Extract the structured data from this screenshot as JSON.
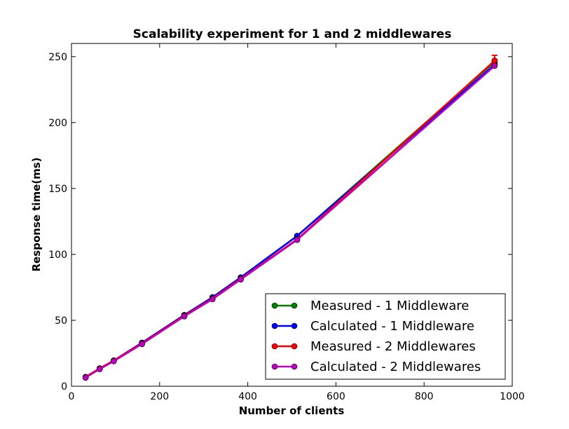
{
  "chart_data": {
    "type": "line",
    "title": "Scalability experiment for 1 and 2 middlewares",
    "xlabel": "Number of clients",
    "ylabel": "Response time(ms)",
    "xlim": [
      0,
      1000
    ],
    "ylim": [
      0,
      260
    ],
    "xticks": [
      0,
      200,
      400,
      600,
      800,
      1000
    ],
    "yticks": [
      0,
      50,
      100,
      150,
      200,
      250
    ],
    "grid": false,
    "legend_position": "lower-right",
    "x": [
      32,
      64,
      96,
      160,
      256,
      320,
      384,
      512,
      960
    ],
    "series": [
      {
        "name": "Measured - 1 Middleware",
        "color": "#008000",
        "values": [
          7,
          13.5,
          19.5,
          33,
          54,
          67.5,
          82.5,
          114,
          246
        ]
      },
      {
        "name": "Calculated - 1 Middleware",
        "color": "#0000ff",
        "values": [
          7,
          13.5,
          19.5,
          33,
          54,
          67.5,
          82.5,
          114,
          244
        ]
      },
      {
        "name": "Measured - 2 Middlewares",
        "color": "#ff0000",
        "values": [
          7,
          13.5,
          19.5,
          32.5,
          53.5,
          66.5,
          81.5,
          111.5,
          247
        ],
        "error_at_last_point": 4
      },
      {
        "name": "Calculated - 2 Middlewares",
        "color": "#bf00bf",
        "values": [
          6.5,
          13,
          19,
          32,
          53,
          66,
          81,
          111,
          243
        ]
      }
    ]
  }
}
